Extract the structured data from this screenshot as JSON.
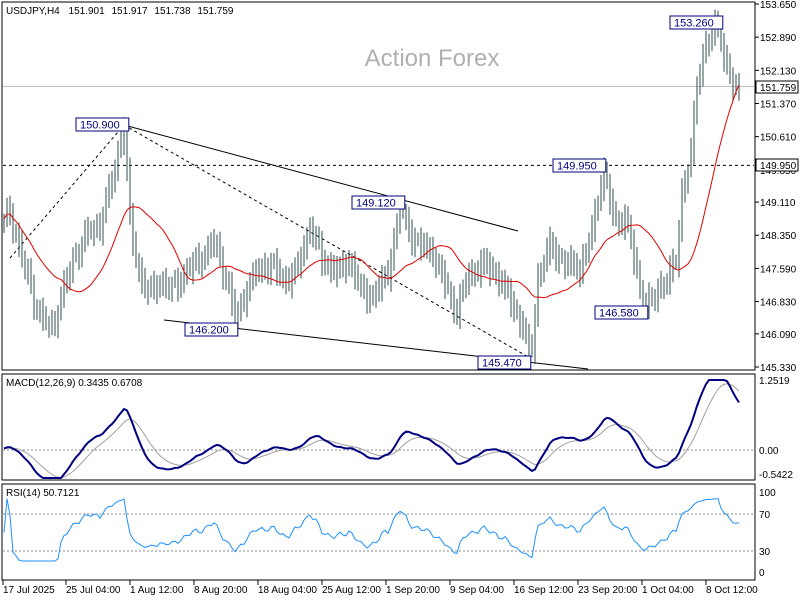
{
  "chart_data": {
    "type": "candlestick",
    "symbol_header": "USDJPY,H4",
    "ohlc": {
      "open": "151.901",
      "high": "151.917",
      "low": "151.738",
      "close": "151.759"
    },
    "watermark": "Action Forex",
    "x_tick_labels": [
      "17 Jul 2025",
      "25 Jul 04:00",
      "1 Aug 12:00",
      "8 Aug 20:00",
      "18 Aug 04:00",
      "25 Aug 12:00",
      "1 Sep 20:00",
      "9 Sep 04:00",
      "16 Sep 12:00",
      "23 Sep 20:00",
      "1 Oct 04:00",
      "8 Oct 12:00"
    ],
    "price_axis": {
      "ylim": [
        145.33,
        153.65
      ],
      "tick_labels": [
        "153.650",
        "152.890",
        "152.130",
        "151.370",
        "150.610",
        "149.850",
        "149.110",
        "148.350",
        "147.590",
        "146.830",
        "146.090",
        "145.330"
      ]
    },
    "price_highlights": {
      "current_price": {
        "value": 151.759,
        "label": "151.759"
      },
      "level_line": {
        "value": 149.95,
        "label": "149.950"
      }
    },
    "annotations": [
      {
        "label": "150.900",
        "value": 150.9
      },
      {
        "label": "149.120",
        "value": 149.12
      },
      {
        "label": "146.200",
        "value": 146.2
      },
      {
        "label": "145.470",
        "value": 145.47
      },
      {
        "label": "149.950",
        "value": 149.95
      },
      {
        "label": "153.260",
        "value": 153.26
      },
      {
        "label": "146.580",
        "value": 146.58
      }
    ],
    "macd": {
      "label": "MACD(12,26,9) 0.3435 0.6708",
      "ylim": [
        -0.5422,
        1.2519
      ],
      "tick_labels": [
        "1.2519",
        "0.00",
        "-0.5422"
      ]
    },
    "rsi": {
      "label": "RSI(14) 50.7121",
      "ylim": [
        0,
        100
      ],
      "tick_labels": [
        "100",
        "70",
        "30",
        "0"
      ],
      "levels": [
        70,
        30
      ]
    },
    "colors": {
      "candles": "#2f4f4f",
      "moving_average": "#e00000",
      "macd_line": "#000080",
      "signal_line": "#a0a0a0",
      "rsi_line": "#1e90ff",
      "annotation": "#000080"
    }
  }
}
